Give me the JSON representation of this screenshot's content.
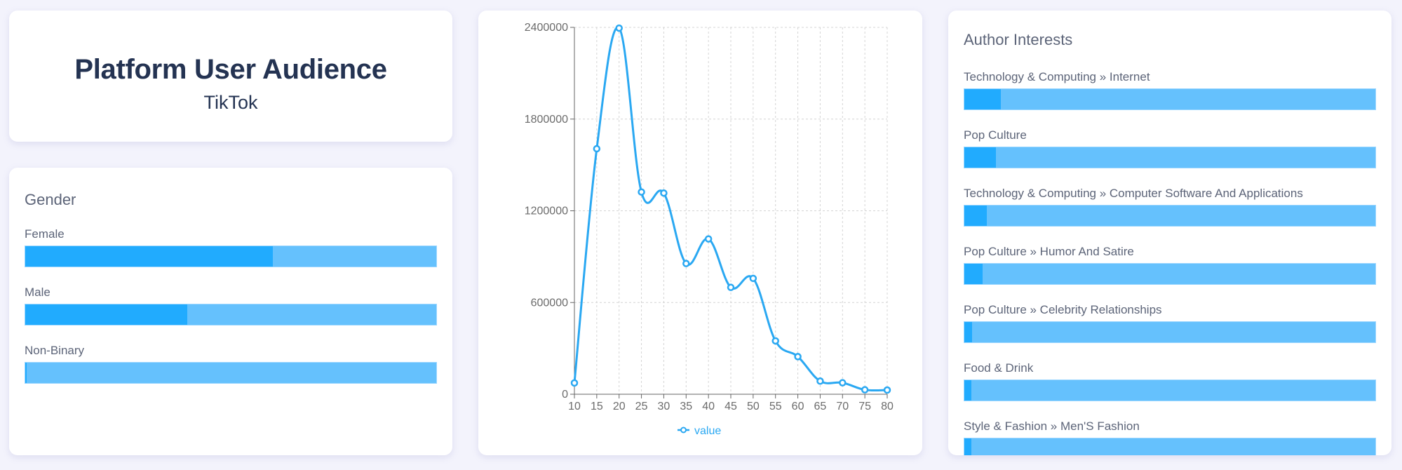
{
  "header": {
    "title": "Platform User Audience",
    "subtitle": "TikTok"
  },
  "gender": {
    "heading": "Gender",
    "items": [
      {
        "label": "Female",
        "percent": 60.3
      },
      {
        "label": "Male",
        "percent": 39.4
      },
      {
        "label": "Non-Binary",
        "percent": 0.3
      }
    ]
  },
  "interests": {
    "heading": "Author Interests",
    "items": [
      {
        "label": "Technology & Computing » Internet",
        "percent": 8.9
      },
      {
        "label": "Pop Culture",
        "percent": 7.7
      },
      {
        "label": "Technology & Computing » Computer Software And Applications",
        "percent": 5.5
      },
      {
        "label": "Pop Culture » Humor And Satire",
        "percent": 4.4
      },
      {
        "label": "Pop Culture » Celebrity Relationships",
        "percent": 1.9
      },
      {
        "label": "Food & Drink",
        "percent": 1.7
      },
      {
        "label": "Style & Fashion » Men'S Fashion",
        "percent": 1.7
      }
    ]
  },
  "colors": {
    "bar_fill": "#21abfe",
    "bar_track": "#65c1fd",
    "line": "#2aa8f2",
    "text_dark": "#243352",
    "text_muted": "#5c6478",
    "background": "#f3f3fc"
  },
  "chart_data": {
    "type": "line",
    "title": "",
    "xlabel": "",
    "ylabel": "",
    "x": [
      10,
      15,
      20,
      25,
      30,
      35,
      40,
      45,
      50,
      55,
      60,
      65,
      70,
      75,
      80
    ],
    "series": [
      {
        "name": "value",
        "values": [
          74000,
          1606000,
          2395000,
          1323000,
          1316000,
          855000,
          1016000,
          699000,
          758000,
          349000,
          246000,
          86000,
          75000,
          29000,
          27500
        ]
      }
    ],
    "yticks": [
      0,
      600000,
      1200000,
      1800000,
      2400000
    ],
    "xticks": [
      10,
      15,
      20,
      25,
      30,
      35,
      40,
      45,
      50,
      55,
      60,
      65,
      70,
      75,
      80
    ],
    "ylim": [
      0,
      2400000
    ],
    "xlim": [
      10,
      80
    ],
    "grid": true,
    "smooth": true,
    "legend": {
      "position": "bottom",
      "entries": [
        "value"
      ]
    }
  }
}
